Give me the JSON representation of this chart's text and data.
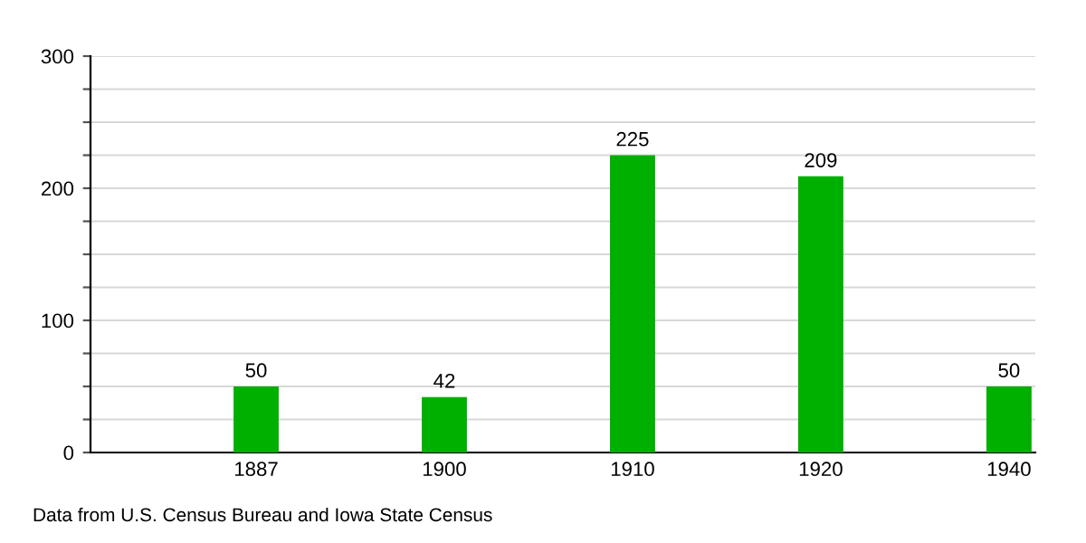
{
  "chart_data": {
    "type": "bar",
    "categories": [
      "1887",
      "1900",
      "1910",
      "1920",
      "1940"
    ],
    "values": [
      50,
      42,
      225,
      209,
      50
    ],
    "color": "#00b000",
    "data_labels": true,
    "ylim": [
      0,
      300
    ],
    "yticks": [
      0,
      {
        "value": 25,
        "label": null
      },
      {
        "value": 50,
        "label": null
      },
      {
        "value": 75,
        "label": null
      },
      100,
      {
        "value": 125,
        "label": null
      },
      {
        "value": 150,
        "label": null
      },
      {
        "value": 175,
        "label": null
      },
      200,
      {
        "value": 225,
        "label": null
      },
      {
        "value": 250,
        "label": null
      },
      {
        "value": 275,
        "label": null
      },
      300
    ],
    "grid": "y",
    "annotations": [
      "Data from U.S. Census Bureau and Iowa State Census"
    ]
  }
}
